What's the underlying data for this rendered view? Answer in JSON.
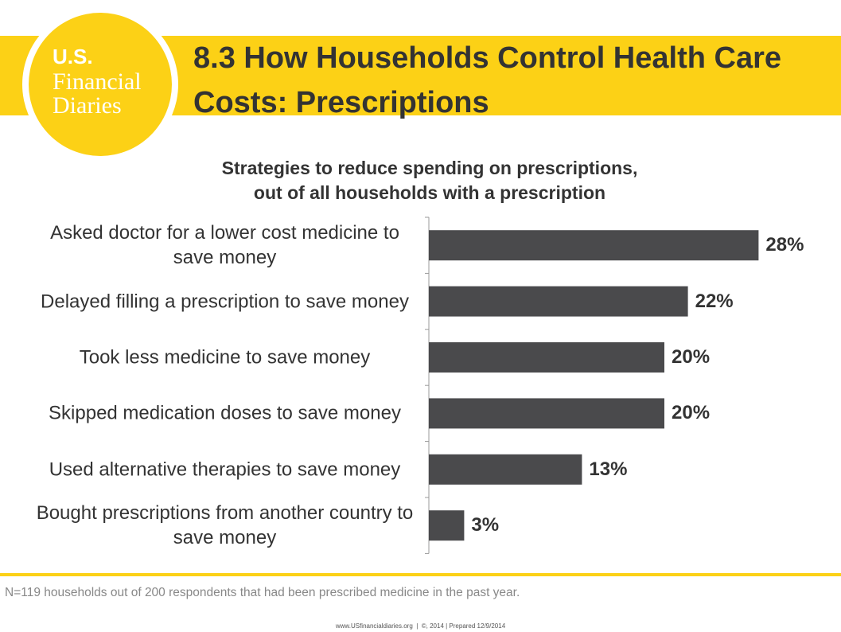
{
  "header": {
    "logo": {
      "line1": "U.S.",
      "line2": "Financial",
      "line3": "Diaries"
    },
    "title": "8.3 How Households Control Health Care Costs: Prescriptions"
  },
  "chart_data": {
    "type": "bar",
    "orientation": "horizontal",
    "title": "Strategies to reduce spending on prescriptions,\nout of all households with a prescription",
    "categories": [
      "Asked doctor for a lower cost medicine to save money",
      "Delayed filling a prescription to save money",
      "Took less medicine to save money",
      "Skipped medication doses to save money",
      "Used alternative therapies to save money",
      "Bought prescriptions from another country to save money"
    ],
    "values": [
      28,
      22,
      20,
      20,
      13,
      3
    ],
    "value_labels": [
      "28%",
      "22%",
      "20%",
      "20%",
      "13%",
      "3%"
    ],
    "color": "#4a4a4c",
    "xlim": [
      0,
      35
    ]
  },
  "footnote": "N=119 households out of 200 respondents that had been prescribed medicine in the past year.",
  "footer": "www.USfinancialdiaries.org  |  ©, 2014 | Prepared 12/9/2014"
}
